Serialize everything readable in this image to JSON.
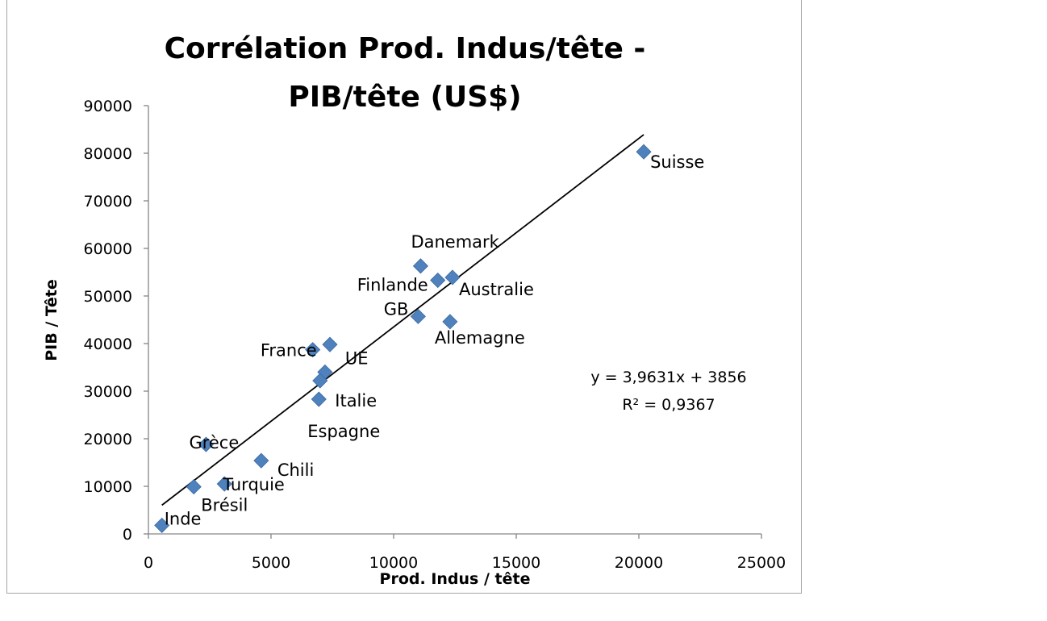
{
  "chart_data": {
    "type": "scatter",
    "title_lines": [
      "Corrélation Prod. Indus/tête -",
      "PIB/tête (US$)"
    ],
    "xlabel": "Prod. Indus / tête",
    "ylabel": "PIB / Tête",
    "xlim": [
      0,
      25000
    ],
    "ylim": [
      0,
      90000
    ],
    "xticks": [
      0,
      5000,
      10000,
      15000,
      20000,
      25000
    ],
    "yticks": [
      0,
      10000,
      20000,
      30000,
      40000,
      50000,
      60000,
      70000,
      80000,
      90000
    ],
    "xtick_labels": [
      "0",
      "5000",
      "10000",
      "15000",
      "20000",
      "25000"
    ],
    "ytick_labels": [
      "0",
      "10000",
      "20000",
      "30000",
      "40000",
      "50000",
      "60000",
      "70000",
      "80000",
      "90000"
    ],
    "marker_color": "#4f81bd",
    "points": [
      {
        "label": "Suisse",
        "x": 20200,
        "y": 80300
      },
      {
        "label": "Danemark",
        "x": 11100,
        "y": 56300
      },
      {
        "label": "Finlande",
        "x": 11800,
        "y": 53300
      },
      {
        "label": "Australie",
        "x": 12400,
        "y": 53900
      },
      {
        "label": "GB",
        "x": 11000,
        "y": 45700
      },
      {
        "label": "Allemagne",
        "x": 12300,
        "y": 44600
      },
      {
        "label": "France",
        "x": 6700,
        "y": 38700
      },
      {
        "label": "",
        "x": 7400,
        "y": 39800
      },
      {
        "label": "UE",
        "x": 7200,
        "y": 34000
      },
      {
        "label": "",
        "x": 7000,
        "y": 32200
      },
      {
        "label": "Italie",
        "x": 6950,
        "y": 28300
      },
      {
        "label": "Espagne",
        "x": 6950,
        "y": 28300,
        "label_only": true
      },
      {
        "label": "Grèce",
        "x": 2350,
        "y": 18800
      },
      {
        "label": "Chili",
        "x": 4600,
        "y": 15400
      },
      {
        "label": "Turquie",
        "x": 3100,
        "y": 10500
      },
      {
        "label": "Brésil",
        "x": 1850,
        "y": 9900
      },
      {
        "label": "Inde",
        "x": 550,
        "y": 1800
      }
    ],
    "trendline": {
      "slope": 3.9631,
      "intercept": 3856,
      "x_range": [
        550,
        20200
      ]
    },
    "equation": "y = 3,9631x + 3856",
    "r_squared": "R² = 0,9367",
    "grid": false,
    "legend": "none"
  }
}
